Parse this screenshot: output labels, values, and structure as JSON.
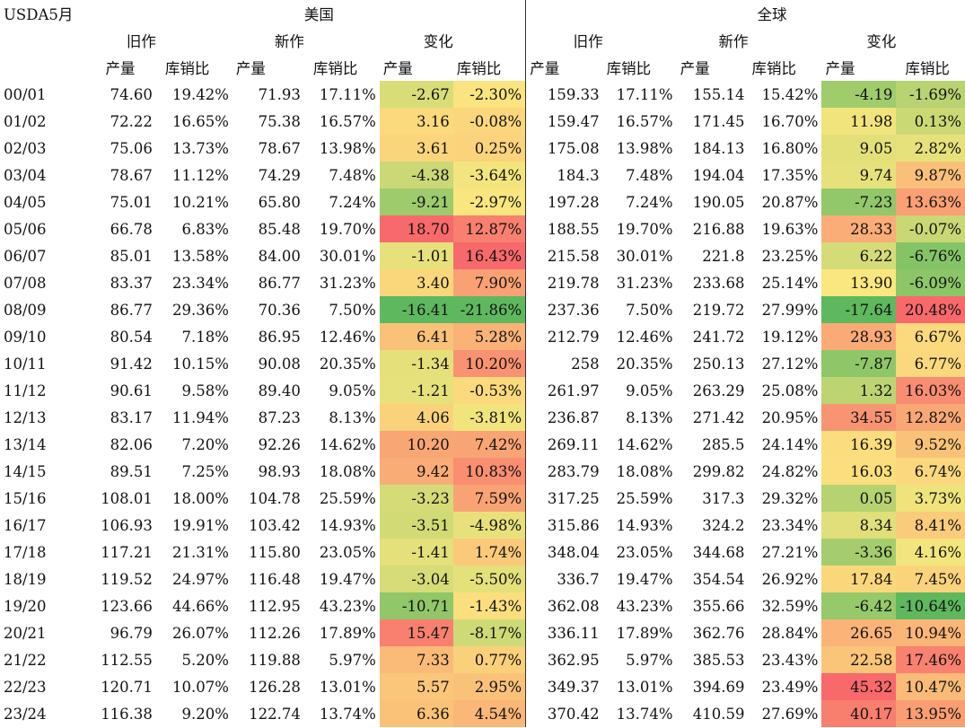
{
  "sheet": {
    "title": "USDA5月",
    "regions": {
      "us": "美国",
      "world": "全球"
    },
    "groups": {
      "old": "旧作",
      "new": "新作",
      "change": "变化"
    },
    "cols": {
      "prod": "产量",
      "ratio": "库销比"
    },
    "colors": {
      "min": "#5eb85e",
      "mid": "#fbe77f",
      "max": "#f8696b"
    }
  },
  "rows": [
    {
      "year": "00/01",
      "us": [
        "74.60",
        "19.42%",
        "71.93",
        "17.11%",
        "-2.67",
        "-2.30%"
      ],
      "world": [
        "159.33",
        "17.11%",
        "155.14",
        "15.42%",
        "-4.19",
        "-1.69%"
      ]
    },
    {
      "year": "01/02",
      "us": [
        "72.22",
        "16.65%",
        "75.38",
        "16.57%",
        "3.16",
        "-0.08%"
      ],
      "world": [
        "159.47",
        "16.57%",
        "171.45",
        "16.70%",
        "11.98",
        "0.13%"
      ]
    },
    {
      "year": "02/03",
      "us": [
        "75.06",
        "13.73%",
        "78.67",
        "13.98%",
        "3.61",
        "0.25%"
      ],
      "world": [
        "175.08",
        "13.98%",
        "184.13",
        "16.80%",
        "9.05",
        "2.82%"
      ]
    },
    {
      "year": "03/04",
      "us": [
        "78.67",
        "11.12%",
        "74.29",
        "7.48%",
        "-4.38",
        "-3.64%"
      ],
      "world": [
        "184.3",
        "7.48%",
        "194.04",
        "17.35%",
        "9.74",
        "9.87%"
      ]
    },
    {
      "year": "04/05",
      "us": [
        "75.01",
        "10.21%",
        "65.80",
        "7.24%",
        "-9.21",
        "-2.97%"
      ],
      "world": [
        "197.28",
        "7.24%",
        "190.05",
        "20.87%",
        "-7.23",
        "13.63%"
      ]
    },
    {
      "year": "05/06",
      "us": [
        "66.78",
        "6.83%",
        "85.48",
        "19.70%",
        "18.70",
        "12.87%"
      ],
      "world": [
        "188.55",
        "19.70%",
        "216.88",
        "19.63%",
        "28.33",
        "-0.07%"
      ]
    },
    {
      "year": "06/07",
      "us": [
        "85.01",
        "13.58%",
        "84.00",
        "30.01%",
        "-1.01",
        "16.43%"
      ],
      "world": [
        "215.58",
        "30.01%",
        "221.8",
        "23.25%",
        "6.22",
        "-6.76%"
      ]
    },
    {
      "year": "07/08",
      "us": [
        "83.37",
        "23.34%",
        "86.77",
        "31.23%",
        "3.40",
        "7.90%"
      ],
      "world": [
        "219.78",
        "31.23%",
        "233.68",
        "25.14%",
        "13.90",
        "-6.09%"
      ]
    },
    {
      "year": "08/09",
      "us": [
        "86.77",
        "29.36%",
        "70.36",
        "7.50%",
        "-16.41",
        "-21.86%"
      ],
      "world": [
        "237.36",
        "7.50%",
        "219.72",
        "27.99%",
        "-17.64",
        "20.48%"
      ]
    },
    {
      "year": "09/10",
      "us": [
        "80.54",
        "7.18%",
        "86.95",
        "12.46%",
        "6.41",
        "5.28%"
      ],
      "world": [
        "212.79",
        "12.46%",
        "241.72",
        "19.12%",
        "28.93",
        "6.67%"
      ]
    },
    {
      "year": "10/11",
      "us": [
        "91.42",
        "10.15%",
        "90.08",
        "20.35%",
        "-1.34",
        "10.20%"
      ],
      "world": [
        "258",
        "20.35%",
        "250.13",
        "27.12%",
        "-7.87",
        "6.77%"
      ]
    },
    {
      "year": "11/12",
      "us": [
        "90.61",
        "9.58%",
        "89.40",
        "9.05%",
        "-1.21",
        "-0.53%"
      ],
      "world": [
        "261.97",
        "9.05%",
        "263.29",
        "25.08%",
        "1.32",
        "16.03%"
      ]
    },
    {
      "year": "12/13",
      "us": [
        "83.17",
        "11.94%",
        "87.23",
        "8.13%",
        "4.06",
        "-3.81%"
      ],
      "world": [
        "236.87",
        "8.13%",
        "271.42",
        "20.95%",
        "34.55",
        "12.82%"
      ]
    },
    {
      "year": "13/14",
      "us": [
        "82.06",
        "7.20%",
        "92.26",
        "14.62%",
        "10.20",
        "7.42%"
      ],
      "world": [
        "269.11",
        "14.62%",
        "285.5",
        "24.14%",
        "16.39",
        "9.52%"
      ]
    },
    {
      "year": "14/15",
      "us": [
        "89.51",
        "7.25%",
        "98.93",
        "18.08%",
        "9.42",
        "10.83%"
      ],
      "world": [
        "283.79",
        "18.08%",
        "299.82",
        "24.82%",
        "16.03",
        "6.74%"
      ]
    },
    {
      "year": "15/16",
      "us": [
        "108.01",
        "18.00%",
        "104.78",
        "25.59%",
        "-3.23",
        "7.59%"
      ],
      "world": [
        "317.25",
        "25.59%",
        "317.3",
        "29.32%",
        "0.05",
        "3.73%"
      ]
    },
    {
      "year": "16/17",
      "us": [
        "106.93",
        "19.91%",
        "103.42",
        "14.93%",
        "-3.51",
        "-4.98%"
      ],
      "world": [
        "315.86",
        "14.93%",
        "324.2",
        "23.34%",
        "8.34",
        "8.41%"
      ]
    },
    {
      "year": "17/18",
      "us": [
        "117.21",
        "21.31%",
        "115.80",
        "23.05%",
        "-1.41",
        "1.74%"
      ],
      "world": [
        "348.04",
        "23.05%",
        "344.68",
        "27.21%",
        "-3.36",
        "4.16%"
      ]
    },
    {
      "year": "18/19",
      "us": [
        "119.52",
        "24.97%",
        "116.48",
        "19.47%",
        "-3.04",
        "-5.50%"
      ],
      "world": [
        "336.7",
        "19.47%",
        "354.54",
        "26.92%",
        "17.84",
        "7.45%"
      ]
    },
    {
      "year": "19/20",
      "us": [
        "123.66",
        "44.66%",
        "112.95",
        "43.23%",
        "-10.71",
        "-1.43%"
      ],
      "world": [
        "362.08",
        "43.23%",
        "355.66",
        "32.59%",
        "-6.42",
        "-10.64%"
      ]
    },
    {
      "year": "20/21",
      "us": [
        "96.79",
        "26.07%",
        "112.26",
        "17.89%",
        "15.47",
        "-8.17%"
      ],
      "world": [
        "336.11",
        "17.89%",
        "362.76",
        "28.84%",
        "26.65",
        "10.94%"
      ]
    },
    {
      "year": "21/22",
      "us": [
        "112.55",
        "5.20%",
        "119.88",
        "5.97%",
        "7.33",
        "0.77%"
      ],
      "world": [
        "362.95",
        "5.97%",
        "385.53",
        "23.43%",
        "22.58",
        "17.46%"
      ]
    },
    {
      "year": "22/23",
      "us": [
        "120.71",
        "10.07%",
        "126.28",
        "13.01%",
        "5.57",
        "2.95%"
      ],
      "world": [
        "349.37",
        "13.01%",
        "394.69",
        "23.49%",
        "45.32",
        "10.47%"
      ]
    },
    {
      "year": "23/24",
      "us": [
        "116.38",
        "9.20%",
        "122.74",
        "13.74%",
        "6.36",
        "4.54%"
      ],
      "world": [
        "370.42",
        "13.74%",
        "410.59",
        "27.69%",
        "40.17",
        "13.95%"
      ]
    }
  ]
}
